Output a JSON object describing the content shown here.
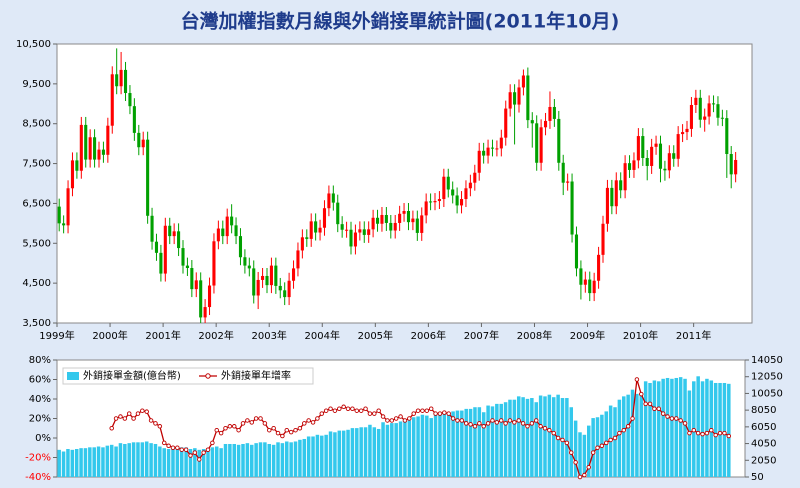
{
  "title": "台灣加權指數月線與外銷接單統計圖(2011年10月)",
  "chart_data": [
    {
      "type": "candlestick",
      "up_color": "#ff0000",
      "down_color": "#00a000",
      "open": [
        6420,
        6000,
        5950,
        6880,
        7580,
        7320,
        8470,
        7600,
        8160,
        7600,
        7850,
        7720,
        8450,
        9740,
        9440,
        9850,
        9270,
        8940,
        8270,
        7910,
        8100,
        6190,
        5540,
        5260,
        4740,
        5940,
        5680,
        5800,
        5380,
        4940,
        4880,
        4350,
        4570,
        3640,
        3900,
        4440,
        5550,
        5870,
        5680,
        6170,
        5950,
        5680,
        5150,
        4940,
        4870,
        4190,
        4580,
        4680,
        4450,
        4940,
        4430,
        4320,
        4150,
        4560,
        4870,
        5320,
        5650,
        5610,
        6050,
        5770,
        5890,
        6380,
        6750,
        6520,
        5980,
        5840,
        5840,
        5420,
        5770,
        5850,
        5710,
        5850,
        6140,
        5990,
        6210,
        6010,
        5820,
        6010,
        6240,
        6310,
        6030,
        6120,
        5760,
        6200,
        6550,
        6530,
        6560,
        6610,
        7170,
        6850,
        6700,
        6450,
        6610,
        6880,
        7020,
        7270,
        7820,
        7700,
        7900,
        7880,
        7880,
        8150,
        8880,
        9290,
        8980,
        9410,
        9710,
        8590,
        8510,
        7520,
        8410,
        8570,
        8920,
        8620,
        7520,
        7020,
        7050,
        5720,
        4870,
        4460,
        4590,
        4250,
        4560,
        5210,
        5990,
        6890,
        6430,
        7080,
        6830,
        7510,
        7340,
        7580,
        8190,
        7640,
        7440,
        7920,
        8000,
        7370,
        7330,
        7760,
        7620,
        8240,
        8290,
        8370,
        8970,
        9150,
        8600,
        8680,
        9010,
        8990,
        8650,
        8640,
        7740,
        7230
      ],
      "high": [
        6620,
        6200,
        7080,
        7780,
        7780,
        8670,
        8670,
        8360,
        8360,
        8050,
        8050,
        8650,
        9940,
        10390,
        10300,
        10050,
        9470,
        9140,
        8470,
        8300,
        8300,
        6390,
        5740,
        5460,
        6140,
        6140,
        6000,
        6000,
        5580,
        5140,
        5080,
        4770,
        4770,
        4100,
        4640,
        5750,
        6070,
        6070,
        6370,
        6480,
        6150,
        5880,
        5350,
        5140,
        5070,
        4780,
        4880,
        4880,
        5140,
        5140,
        4630,
        4520,
        4760,
        5070,
        5520,
        5850,
        5850,
        6250,
        6250,
        6090,
        6580,
        6950,
        6950,
        6720,
        6180,
        6040,
        6040,
        5970,
        6050,
        6050,
        6050,
        6340,
        6340,
        6410,
        6410,
        6210,
        6210,
        6440,
        6510,
        6510,
        6320,
        6320,
        6400,
        6750,
        6750,
        6760,
        6810,
        7370,
        7370,
        7050,
        6900,
        6810,
        7080,
        7220,
        7470,
        8020,
        8020,
        8100,
        8100,
        8080,
        8350,
        9080,
        9490,
        9490,
        9610,
        9860,
        9910,
        8790,
        8710,
        8610,
        8770,
        9310,
        9120,
        8820,
        7720,
        7250,
        7250,
        5920,
        5070,
        4790,
        4790,
        4760,
        5410,
        6190,
        7090,
        7090,
        7280,
        7280,
        7710,
        7710,
        7780,
        8390,
        8390,
        7840,
        8120,
        8200,
        8200,
        7570,
        7960,
        7960,
        8440,
        8490,
        8570,
        9170,
        9350,
        9350,
        8880,
        9210,
        9210,
        9190,
        8850,
        8840,
        7940,
        7790
      ],
      "low": [
        5800,
        5750,
        5750,
        6680,
        7120,
        7120,
        7400,
        7400,
        7400,
        7400,
        7520,
        7520,
        8250,
        9240,
        9240,
        9070,
        8740,
        8070,
        7710,
        7710,
        5990,
        5340,
        5060,
        4540,
        4540,
        5480,
        5480,
        5180,
        4740,
        4680,
        4150,
        4150,
        3500,
        3500,
        3700,
        4240,
        5350,
        5480,
        5480,
        5750,
        5480,
        4950,
        4740,
        4670,
        3990,
        3850,
        4380,
        4250,
        4250,
        4230,
        4120,
        3950,
        3950,
        4360,
        4670,
        5120,
        5410,
        5410,
        5570,
        5570,
        5690,
        6180,
        6320,
        5780,
        5640,
        5640,
        5220,
        5220,
        5570,
        5510,
        5510,
        5650,
        5790,
        5790,
        5810,
        5620,
        5620,
        5810,
        6040,
        5830,
        5830,
        5560,
        5560,
        6000,
        6330,
        6330,
        6360,
        6410,
        6650,
        6500,
        6250,
        6250,
        6410,
        6680,
        6820,
        7070,
        7500,
        7500,
        7680,
        7680,
        7680,
        7950,
        8680,
        7980,
        8780,
        9210,
        8390,
        7900,
        7320,
        7320,
        8210,
        8370,
        8420,
        7320,
        6710,
        6820,
        5520,
        4670,
        4090,
        4260,
        4050,
        4050,
        4360,
        5010,
        5790,
        6230,
        6230,
        6630,
        6630,
        7140,
        7140,
        7380,
        7440,
        7080,
        7240,
        7720,
        7030,
        7070,
        7130,
        7420,
        7420,
        8040,
        8090,
        8170,
        8770,
        8400,
        8300,
        8480,
        8790,
        8450,
        8440,
        7140,
        6880,
        7030
      ],
      "close": [
        6000,
        5950,
        6880,
        7580,
        7320,
        8470,
        7600,
        8160,
        7600,
        7850,
        7720,
        8450,
        9740,
        9440,
        9850,
        9270,
        8940,
        8270,
        7910,
        8100,
        6190,
        5540,
        5260,
        4740,
        5940,
        5680,
        5800,
        5380,
        4940,
        4880,
        4350,
        4570,
        3640,
        3900,
        4440,
        5550,
        5870,
        5680,
        6170,
        5950,
        5680,
        5150,
        4940,
        4870,
        4190,
        4580,
        4680,
        4450,
        4940,
        4430,
        4320,
        4150,
        4560,
        4870,
        5320,
        5650,
        5610,
        6050,
        5770,
        5890,
        6380,
        6750,
        6520,
        5980,
        5840,
        5840,
        5420,
        5770,
        5850,
        5710,
        5850,
        6140,
        5990,
        6210,
        6010,
        5820,
        6010,
        6240,
        6310,
        6030,
        6120,
        5760,
        6200,
        6550,
        6530,
        6560,
        6610,
        7170,
        6850,
        6700,
        6450,
        6610,
        6880,
        7020,
        7270,
        7820,
        7700,
        7900,
        7880,
        7880,
        8150,
        8880,
        9290,
        8980,
        9410,
        9710,
        8590,
        8510,
        7520,
        8410,
        8570,
        8920,
        8620,
        7520,
        7020,
        7050,
        5720,
        4870,
        4460,
        4590,
        4250,
        4560,
        5210,
        5990,
        6890,
        6430,
        7080,
        6830,
        7510,
        7340,
        7580,
        8190,
        7640,
        7440,
        7920,
        8000,
        7370,
        7330,
        7760,
        7620,
        8240,
        8290,
        8370,
        8970,
        9150,
        8600,
        8680,
        9010,
        8990,
        8650,
        8640,
        7740,
        7230,
        7590
      ],
      "ylim": [
        3500,
        10500
      ],
      "yticks": [
        {
          "value": 3500,
          "label": "3,500"
        },
        {
          "value": 4500,
          "label": "4,500"
        },
        {
          "value": 5500,
          "label": "5,500"
        },
        {
          "value": 6500,
          "label": "6,500"
        },
        {
          "value": 7500,
          "label": "7,500"
        },
        {
          "value": 8500,
          "label": "8,500"
        },
        {
          "value": 9500,
          "label": "9,500"
        },
        {
          "value": 10500,
          "label": "10,500"
        }
      ],
      "xlim": [
        1999,
        2012.1
      ],
      "xticks": [
        {
          "value": 1999,
          "label": "1999年"
        },
        {
          "value": 2000,
          "label": "2000年"
        },
        {
          "value": 2001,
          "label": "2001年"
        },
        {
          "value": 2002,
          "label": "2002年"
        },
        {
          "value": 2003,
          "label": "2003年"
        },
        {
          "value": 2004,
          "label": "2004年"
        },
        {
          "value": 2005,
          "label": "2005年"
        },
        {
          "value": 2006,
          "label": "2006年"
        },
        {
          "value": 2007,
          "label": "2007年"
        },
        {
          "value": 2008,
          "label": "2008年"
        },
        {
          "value": 2009,
          "label": "2009年"
        },
        {
          "value": 2010,
          "label": "2010年"
        },
        {
          "value": 2011,
          "label": "2011年"
        }
      ]
    },
    {
      "type": "bar_line",
      "xlim": [
        1999,
        2012.1
      ],
      "ylim": [
        -40,
        80
      ],
      "yticks": [
        {
          "value": -40,
          "label": "-40%"
        },
        {
          "value": -20,
          "label": "-20%"
        },
        {
          "value": 0,
          "label": "0%"
        },
        {
          "value": 20,
          "label": "20%"
        },
        {
          "value": 40,
          "label": "40%"
        },
        {
          "value": 60,
          "label": "60%"
        },
        {
          "value": 80,
          "label": "80%"
        }
      ],
      "y2lim": [
        50,
        14050
      ],
      "y2ticks": [
        50,
        2050,
        4050,
        6050,
        8050,
        10050,
        12050,
        14050
      ],
      "series": [
        {
          "name": "外銷接單金額(億台幣)",
          "color": "#33c8ec",
          "axis": "y2",
          "values": [
            3300,
            3100,
            3400,
            3300,
            3400,
            3500,
            3500,
            3600,
            3600,
            3700,
            3600,
            3800,
            3900,
            3700,
            4100,
            4000,
            4100,
            4200,
            4200,
            4200,
            4300,
            4100,
            4000,
            3700,
            3500,
            3400,
            3700,
            3600,
            3600,
            3600,
            3400,
            3500,
            3300,
            3400,
            3500,
            3600,
            3700,
            3500,
            4000,
            4000,
            4000,
            3900,
            4000,
            4100,
            3900,
            4100,
            4200,
            4200,
            4000,
            3900,
            4200,
            4100,
            4300,
            4200,
            4300,
            4500,
            4600,
            4900,
            4900,
            5100,
            5000,
            5100,
            5500,
            5400,
            5600,
            5600,
            5700,
            5900,
            5900,
            6000,
            6000,
            6300,
            6000,
            5800,
            6600,
            6300,
            6500,
            6500,
            6700,
            6800,
            6800,
            7200,
            7300,
            7500,
            7400,
            7100,
            7800,
            7600,
            7900,
            7800,
            7900,
            8000,
            8000,
            8200,
            8200,
            8400,
            8400,
            7800,
            8600,
            8500,
            8800,
            8800,
            9000,
            9300,
            9300,
            9700,
            9600,
            9400,
            9500,
            9000,
            9800,
            9700,
            9900,
            9600,
            9900,
            9500,
            9500,
            8400,
            6800,
            5400,
            5100,
            6200,
            7100,
            7200,
            7500,
            7900,
            8600,
            8400,
            9300,
            9700,
            9900,
            10500,
            10000,
            10100,
            11500,
            11300,
            11600,
            11500,
            11800,
            11900,
            11800,
            11900,
            12000,
            11800,
            10400,
            11500,
            12100,
            11500,
            11800,
            11600,
            11300,
            11300,
            11300,
            11200
          ]
        },
        {
          "name": "外銷接單年增率",
          "color": "#c00000",
          "axis": "y",
          "values": [
            null,
            null,
            null,
            null,
            null,
            null,
            null,
            null,
            null,
            null,
            null,
            null,
            10,
            20,
            22,
            20,
            25,
            20,
            25,
            28,
            27,
            18,
            15,
            12,
            -5,
            -8,
            -10,
            -10,
            -12,
            -12,
            -18,
            -15,
            -22,
            -15,
            -12,
            -5,
            8,
            5,
            10,
            12,
            12,
            8,
            15,
            18,
            16,
            20,
            20,
            15,
            8,
            10,
            5,
            2,
            8,
            6,
            8,
            10,
            15,
            18,
            16,
            20,
            25,
            28,
            30,
            28,
            30,
            32,
            30,
            30,
            28,
            28,
            30,
            25,
            25,
            28,
            22,
            18,
            18,
            20,
            22,
            18,
            20,
            25,
            28,
            28,
            28,
            30,
            25,
            25,
            26,
            25,
            20,
            18,
            18,
            15,
            14,
            12,
            15,
            12,
            15,
            18,
            16,
            18,
            15,
            18,
            16,
            18,
            15,
            12,
            15,
            18,
            12,
            10,
            8,
            5,
            0,
            -2,
            -5,
            -15,
            -25,
            -40,
            -38,
            -30,
            -15,
            -10,
            -8,
            -5,
            -2,
            0,
            5,
            8,
            12,
            20,
            60,
            45,
            35,
            35,
            30,
            30,
            25,
            22,
            20,
            20,
            18,
            15,
            5,
            8,
            5,
            4,
            5,
            8,
            3,
            5,
            5,
            2
          ]
        }
      ]
    }
  ]
}
